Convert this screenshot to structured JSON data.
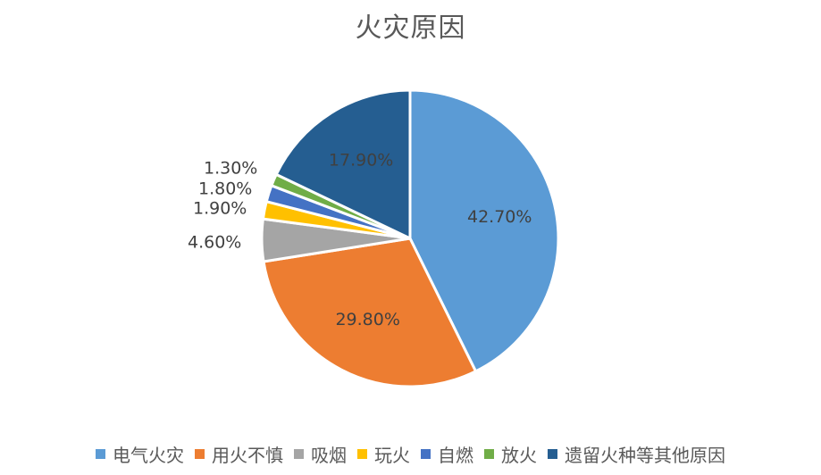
{
  "chart_data": {
    "type": "pie",
    "title": "火灾原因",
    "slices": [
      {
        "name": "电气火灾",
        "value": 42.7,
        "label": "42.70%",
        "color": "#5B9BD5"
      },
      {
        "name": "用火不慎",
        "value": 29.8,
        "label": "29.80%",
        "color": "#ED7D31"
      },
      {
        "name": "吸烟",
        "value": 4.6,
        "label": "4.60%",
        "color": "#A5A5A5"
      },
      {
        "name": "玩火",
        "value": 1.9,
        "label": "1.90%",
        "color": "#FFC000"
      },
      {
        "name": "自燃",
        "value": 1.8,
        "label": "1.80%",
        "color": "#4472C4"
      },
      {
        "name": "放火",
        "value": 1.3,
        "label": "1.30%",
        "color": "#70AD47"
      },
      {
        "name": "遗留火种等其他原因",
        "value": 17.9,
        "label": "17.90%",
        "color": "#255E91"
      }
    ],
    "legend_position": "bottom",
    "data_labels": true
  }
}
